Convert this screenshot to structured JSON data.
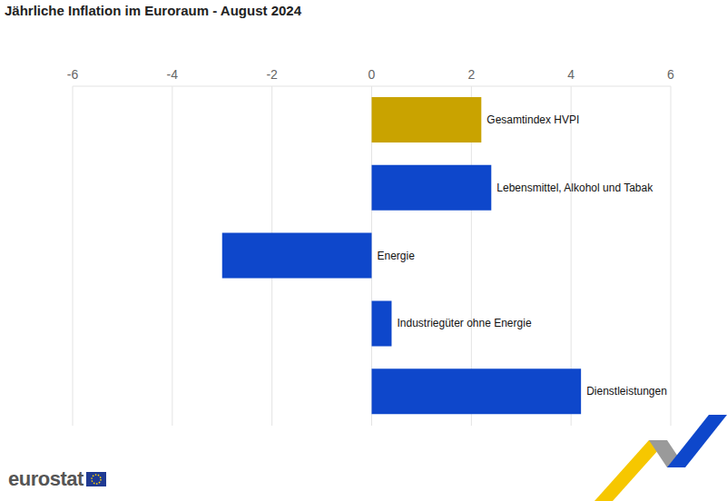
{
  "chart_data": {
    "type": "bar",
    "title": "Jährliche Inflation im Euroraum - August 2024",
    "orientation": "horizontal",
    "categories": [
      "Gesamtindex HVPI",
      "Lebensmittel, Alkohol und Tabak",
      "Energie",
      "Industriegüter ohne Energie",
      "Dienstleistungen"
    ],
    "values": [
      2.2,
      2.4,
      -3.0,
      0.4,
      4.2
    ],
    "colors": [
      "#c9a300",
      "#0e47cb",
      "#0e47cb",
      "#0e47cb",
      "#0e47cb"
    ],
    "xlim": [
      -6,
      6
    ],
    "xticks": [
      -6,
      -4,
      -2,
      0,
      2,
      4,
      6
    ],
    "grid": true,
    "tick_labels": "x",
    "source": "eurostat"
  }
}
